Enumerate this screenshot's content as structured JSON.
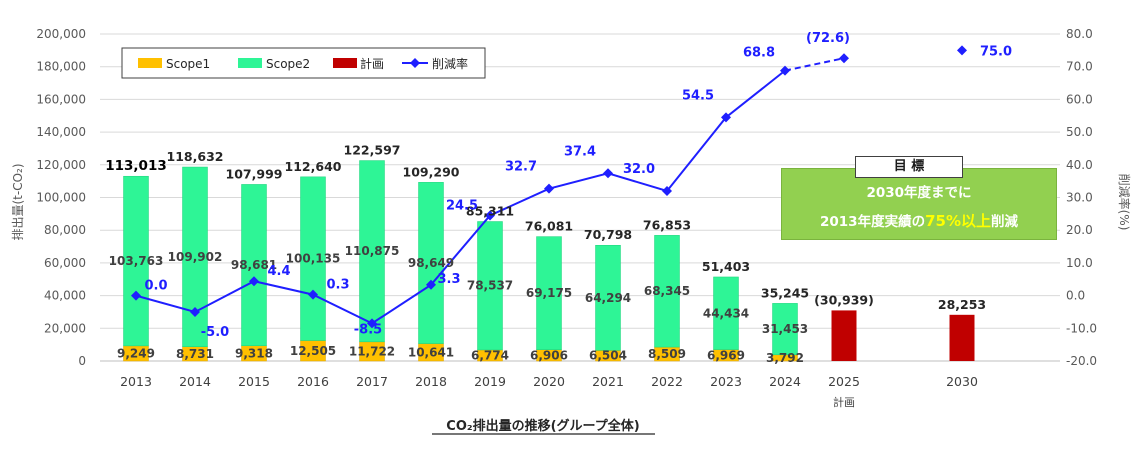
{
  "chart_data": {
    "type": "bar",
    "title": "CO₂排出量の推移(グループ全体)",
    "categories": [
      "2013",
      "2014",
      "2015",
      "2016",
      "2017",
      "2018",
      "2019",
      "2020",
      "2021",
      "2022",
      "2023",
      "2024",
      "2025",
      "2030"
    ],
    "category_sublabels": {
      "2025": "計画"
    },
    "series": [
      {
        "name": "Scope1",
        "color": "#ffc000",
        "values": [
          9249,
          8731,
          9318,
          12505,
          11722,
          10641,
          6774,
          6906,
          6504,
          8509,
          6969,
          3792,
          null,
          null
        ],
        "labels": [
          "9,249",
          "8,731",
          "9,318",
          "12,505",
          "11,722",
          "10,641",
          "6,774",
          "6,906",
          "6,504",
          "8,509",
          "6,969",
          "3,792",
          "",
          ""
        ]
      },
      {
        "name": "Scope2",
        "color": "#2ef596",
        "values": [
          103763,
          109902,
          98681,
          100135,
          110875,
          98649,
          78537,
          69175,
          64294,
          68345,
          44434,
          31453,
          null,
          null
        ],
        "labels": [
          "103,763",
          "109,902",
          "98,681",
          "100,135",
          "110,875",
          "98,649",
          "78,537",
          "69,175",
          "64,294",
          "68,345",
          "44,434",
          "31,453",
          "",
          ""
        ]
      },
      {
        "name": "計画",
        "color": "#c00000",
        "values": [
          null,
          null,
          null,
          null,
          null,
          null,
          null,
          null,
          null,
          null,
          null,
          null,
          30939,
          28253
        ]
      },
      {
        "name": "削減率",
        "color": "#1f1fff",
        "axis": "right",
        "values": [
          0.0,
          -5.0,
          4.4,
          0.3,
          -8.5,
          3.3,
          24.5,
          32.7,
          37.4,
          32.0,
          54.5,
          68.8,
          72.6,
          75.0
        ],
        "labels": [
          "0.0",
          "-5.0",
          "4.4",
          "0.3",
          "-8.5",
          "3.3",
          "24.5",
          "32.7",
          "37.4",
          "32.0",
          "54.5",
          "68.8",
          "(72.6)",
          "75.0"
        ],
        "dashed_from": "2024"
      }
    ],
    "totals": [
      "113,013",
      "118,632",
      "107,999",
      "112,640",
      "122,597",
      "109,290",
      "85,311",
      "76,081",
      "70,798",
      "76,853",
      "51,403",
      "35,245",
      "(30,939)",
      "28,253"
    ],
    "ylabel": "排出量(t-CO₂)",
    "y2label": "削減率(%)",
    "ylim": [
      0,
      200000
    ],
    "y2lim": [
      -20,
      80
    ],
    "yticks": [
      "0",
      "20,000",
      "40,000",
      "60,000",
      "80,000",
      "100,000",
      "120,000",
      "140,000",
      "160,000",
      "180,000",
      "200,000"
    ],
    "y2ticks": [
      "-20.0",
      "-10.0",
      "0.0",
      "10.0",
      "20.0",
      "30.0",
      "40.0",
      "50.0",
      "60.0",
      "70.0",
      "80.0"
    ],
    "grid": true,
    "legend": "top-left"
  },
  "target": {
    "badge": "目 標",
    "line1": "2030年度までに",
    "line2_pre": "2013年度実績の",
    "line2_highlight": "75%以上",
    "line2_post": "削減"
  }
}
